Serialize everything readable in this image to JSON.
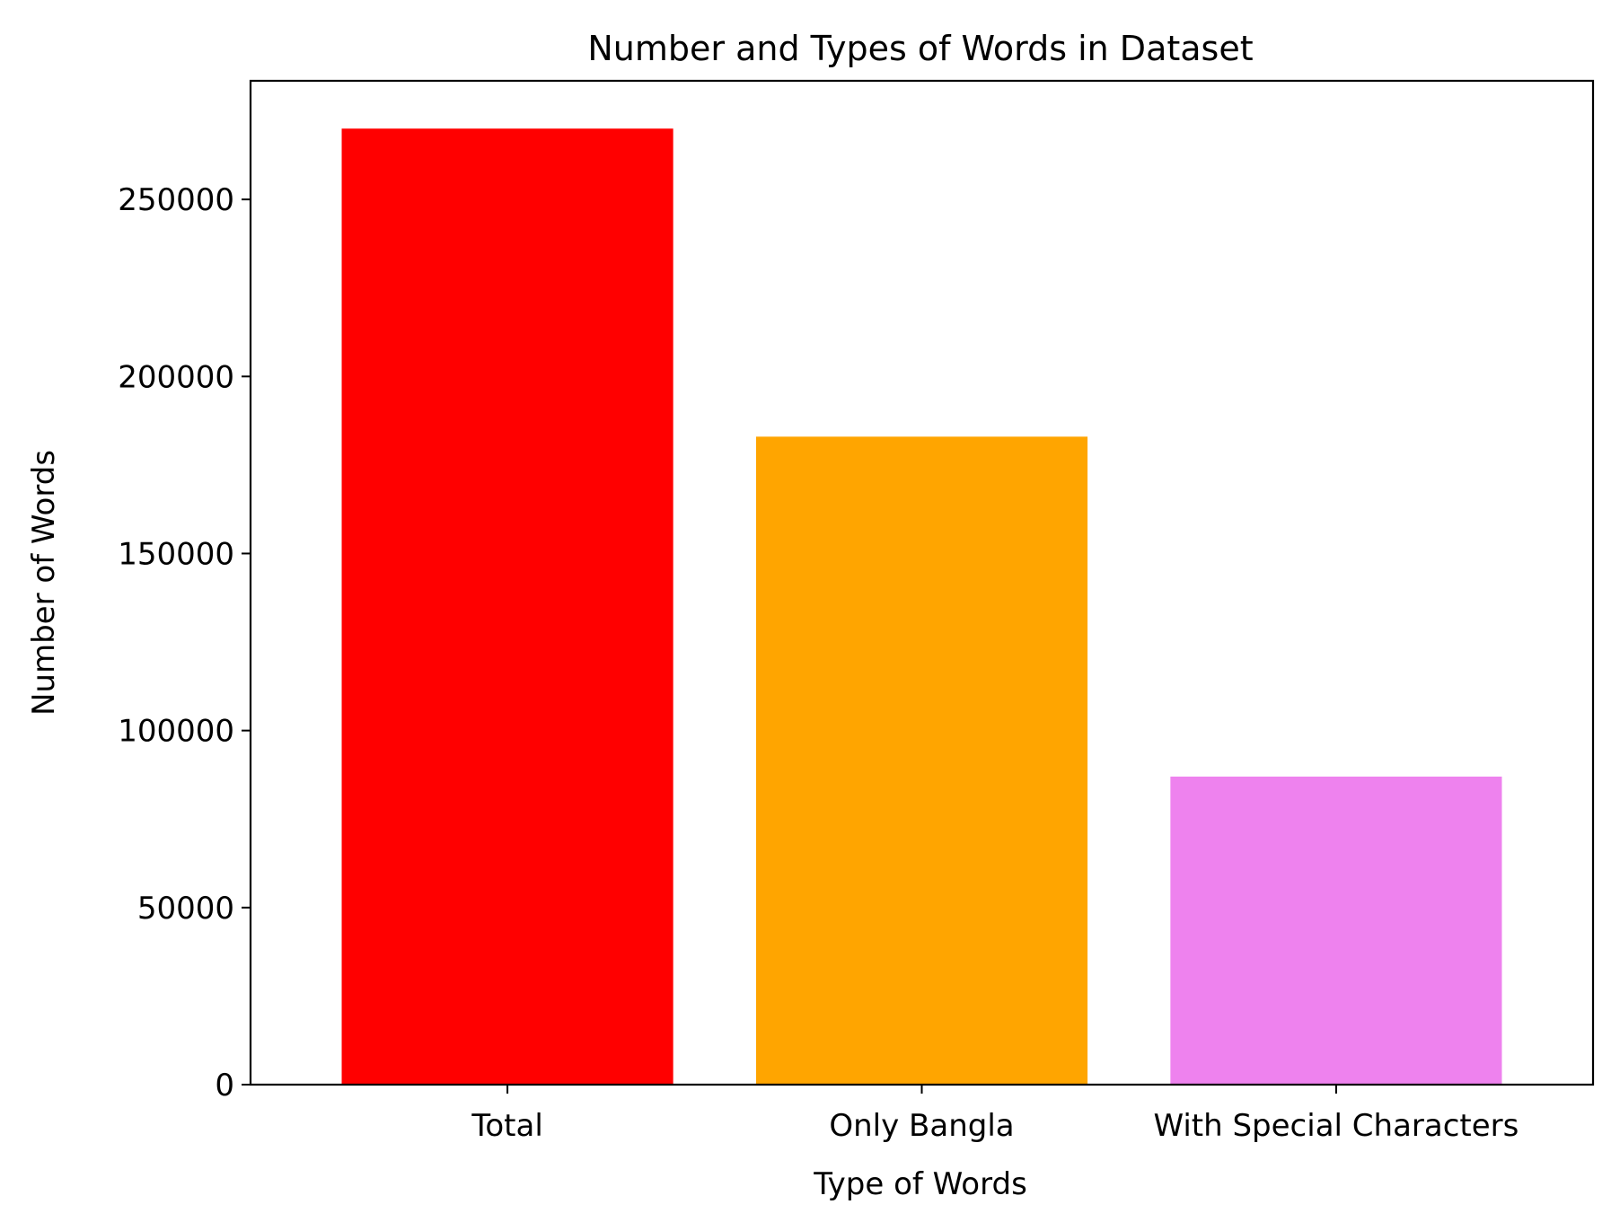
{
  "chart_data": {
    "type": "bar",
    "title": "Number and Types of Words in Dataset",
    "xlabel": "Type of Words",
    "ylabel": "Number of Words",
    "categories": [
      "Total",
      "Only Bangla",
      "With Special Characters"
    ],
    "values": [
      270000,
      183000,
      87000
    ],
    "colors": [
      "#ff0000",
      "#ffa500",
      "#ee82ee"
    ],
    "ylim": [
      0,
      283500
    ],
    "yticks": [
      0,
      50000,
      100000,
      150000,
      200000,
      250000
    ],
    "ytick_labels": [
      "0",
      "50000",
      "100000",
      "150000",
      "200000",
      "250000"
    ],
    "grid": false,
    "legend": "none"
  }
}
